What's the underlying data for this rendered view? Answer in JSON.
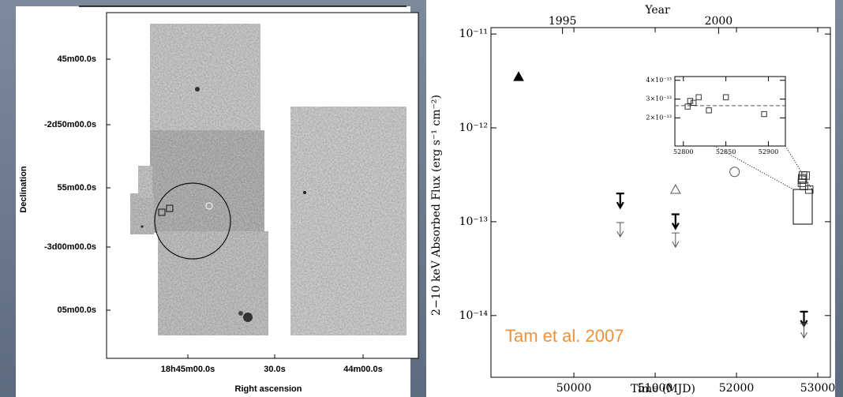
{
  "chart_data": [
    {
      "type": "image",
      "xlabel": "Right ascension",
      "ylabel": "Declination",
      "xtick_labels": [
        "18h45m00.0s",
        "30.0s",
        "44m00.0s"
      ],
      "ytick_labels": [
        "45m00.0s",
        "-2d50m00.0s",
        "55m00.0s",
        "-3d00m00.0s",
        "05m00.0s"
      ]
    },
    {
      "type": "scatter",
      "xlabel": "Time (MJD)",
      "x2label": "Year",
      "ylabel": "2−10 keV Absorbed Flux (erg s⁻¹ cm⁻²)",
      "annotation": "Tam et al. 2007",
      "annotation_color": "#f0903a",
      "ylog": true,
      "xlim": [
        48980,
        53155
      ],
      "ylim": [
        2.2e-15,
        1.17e-11
      ],
      "xticks": [
        50000,
        51000,
        52000,
        53000
      ],
      "x2ticks": [
        {
          "value": 49860,
          "label": "1995"
        },
        {
          "value": 51780,
          "label": "2000"
        }
      ],
      "yticks": [
        {
          "value": 1e-11,
          "label": "10⁻¹¹"
        },
        {
          "value": 1e-12,
          "label": "10⁻¹²"
        },
        {
          "value": 1e-13,
          "label": "10⁻¹³"
        },
        {
          "value": 1e-14,
          "label": "10⁻¹⁴"
        }
      ],
      "series": [
        {
          "marker": "filled-triangle",
          "color": "#000000",
          "x": [
            49320
          ],
          "values": [
            3.5e-12
          ]
        },
        {
          "marker": "open-triangle",
          "color": "#555555",
          "x": [
            51250
          ],
          "values": [
            2.2e-13
          ]
        },
        {
          "marker": "circle",
          "color": "#555555",
          "x": [
            51977
          ],
          "values": [
            3.4e-13
          ]
        },
        {
          "marker": "square",
          "color": "#333333",
          "x": [
            52805,
            52808,
            52812,
            52818,
            52830,
            52850,
            52895
          ],
          "values": [
            2.6e-13,
            2.9e-13,
            2.8e-13,
            3.1e-13,
            2.4e-13,
            3.1e-13,
            2.2e-13
          ]
        },
        {
          "marker": "upper-limit-thick",
          "color": "#000000",
          "x": [
            50570,
            51250,
            52830
          ],
          "values": [
            2e-13,
            1.2e-13,
            1.1e-14
          ]
        },
        {
          "marker": "upper-limit-thin",
          "color": "#555555",
          "x": [
            50570,
            51250,
            52830
          ],
          "values": [
            9.8e-14,
            7.6e-14,
            8.2e-15
          ]
        }
      ]
    },
    {
      "type": "scatter",
      "xlim": [
        52790,
        52920
      ],
      "ylim": [
        5e-14,
        4.2e-13
      ],
      "xticks": [
        52800,
        52850,
        52900
      ],
      "yticks": [
        {
          "value": 2e-13,
          "label": "2×10⁻¹³"
        },
        {
          "value": 3e-13,
          "label": "3×10⁻¹³"
        },
        {
          "value": 4e-13,
          "label": "4×10⁻¹³"
        }
      ],
      "reference_line": 2.65e-13,
      "series": [
        {
          "marker": "square",
          "color": "#333333",
          "x": [
            52805,
            52808,
            52812,
            52818,
            52830,
            52850,
            52895
          ],
          "values": [
            2.6e-13,
            2.9e-13,
            2.8e-13,
            3.1e-13,
            2.4e-13,
            3.1e-13,
            2.2e-13
          ]
        }
      ]
    }
  ]
}
